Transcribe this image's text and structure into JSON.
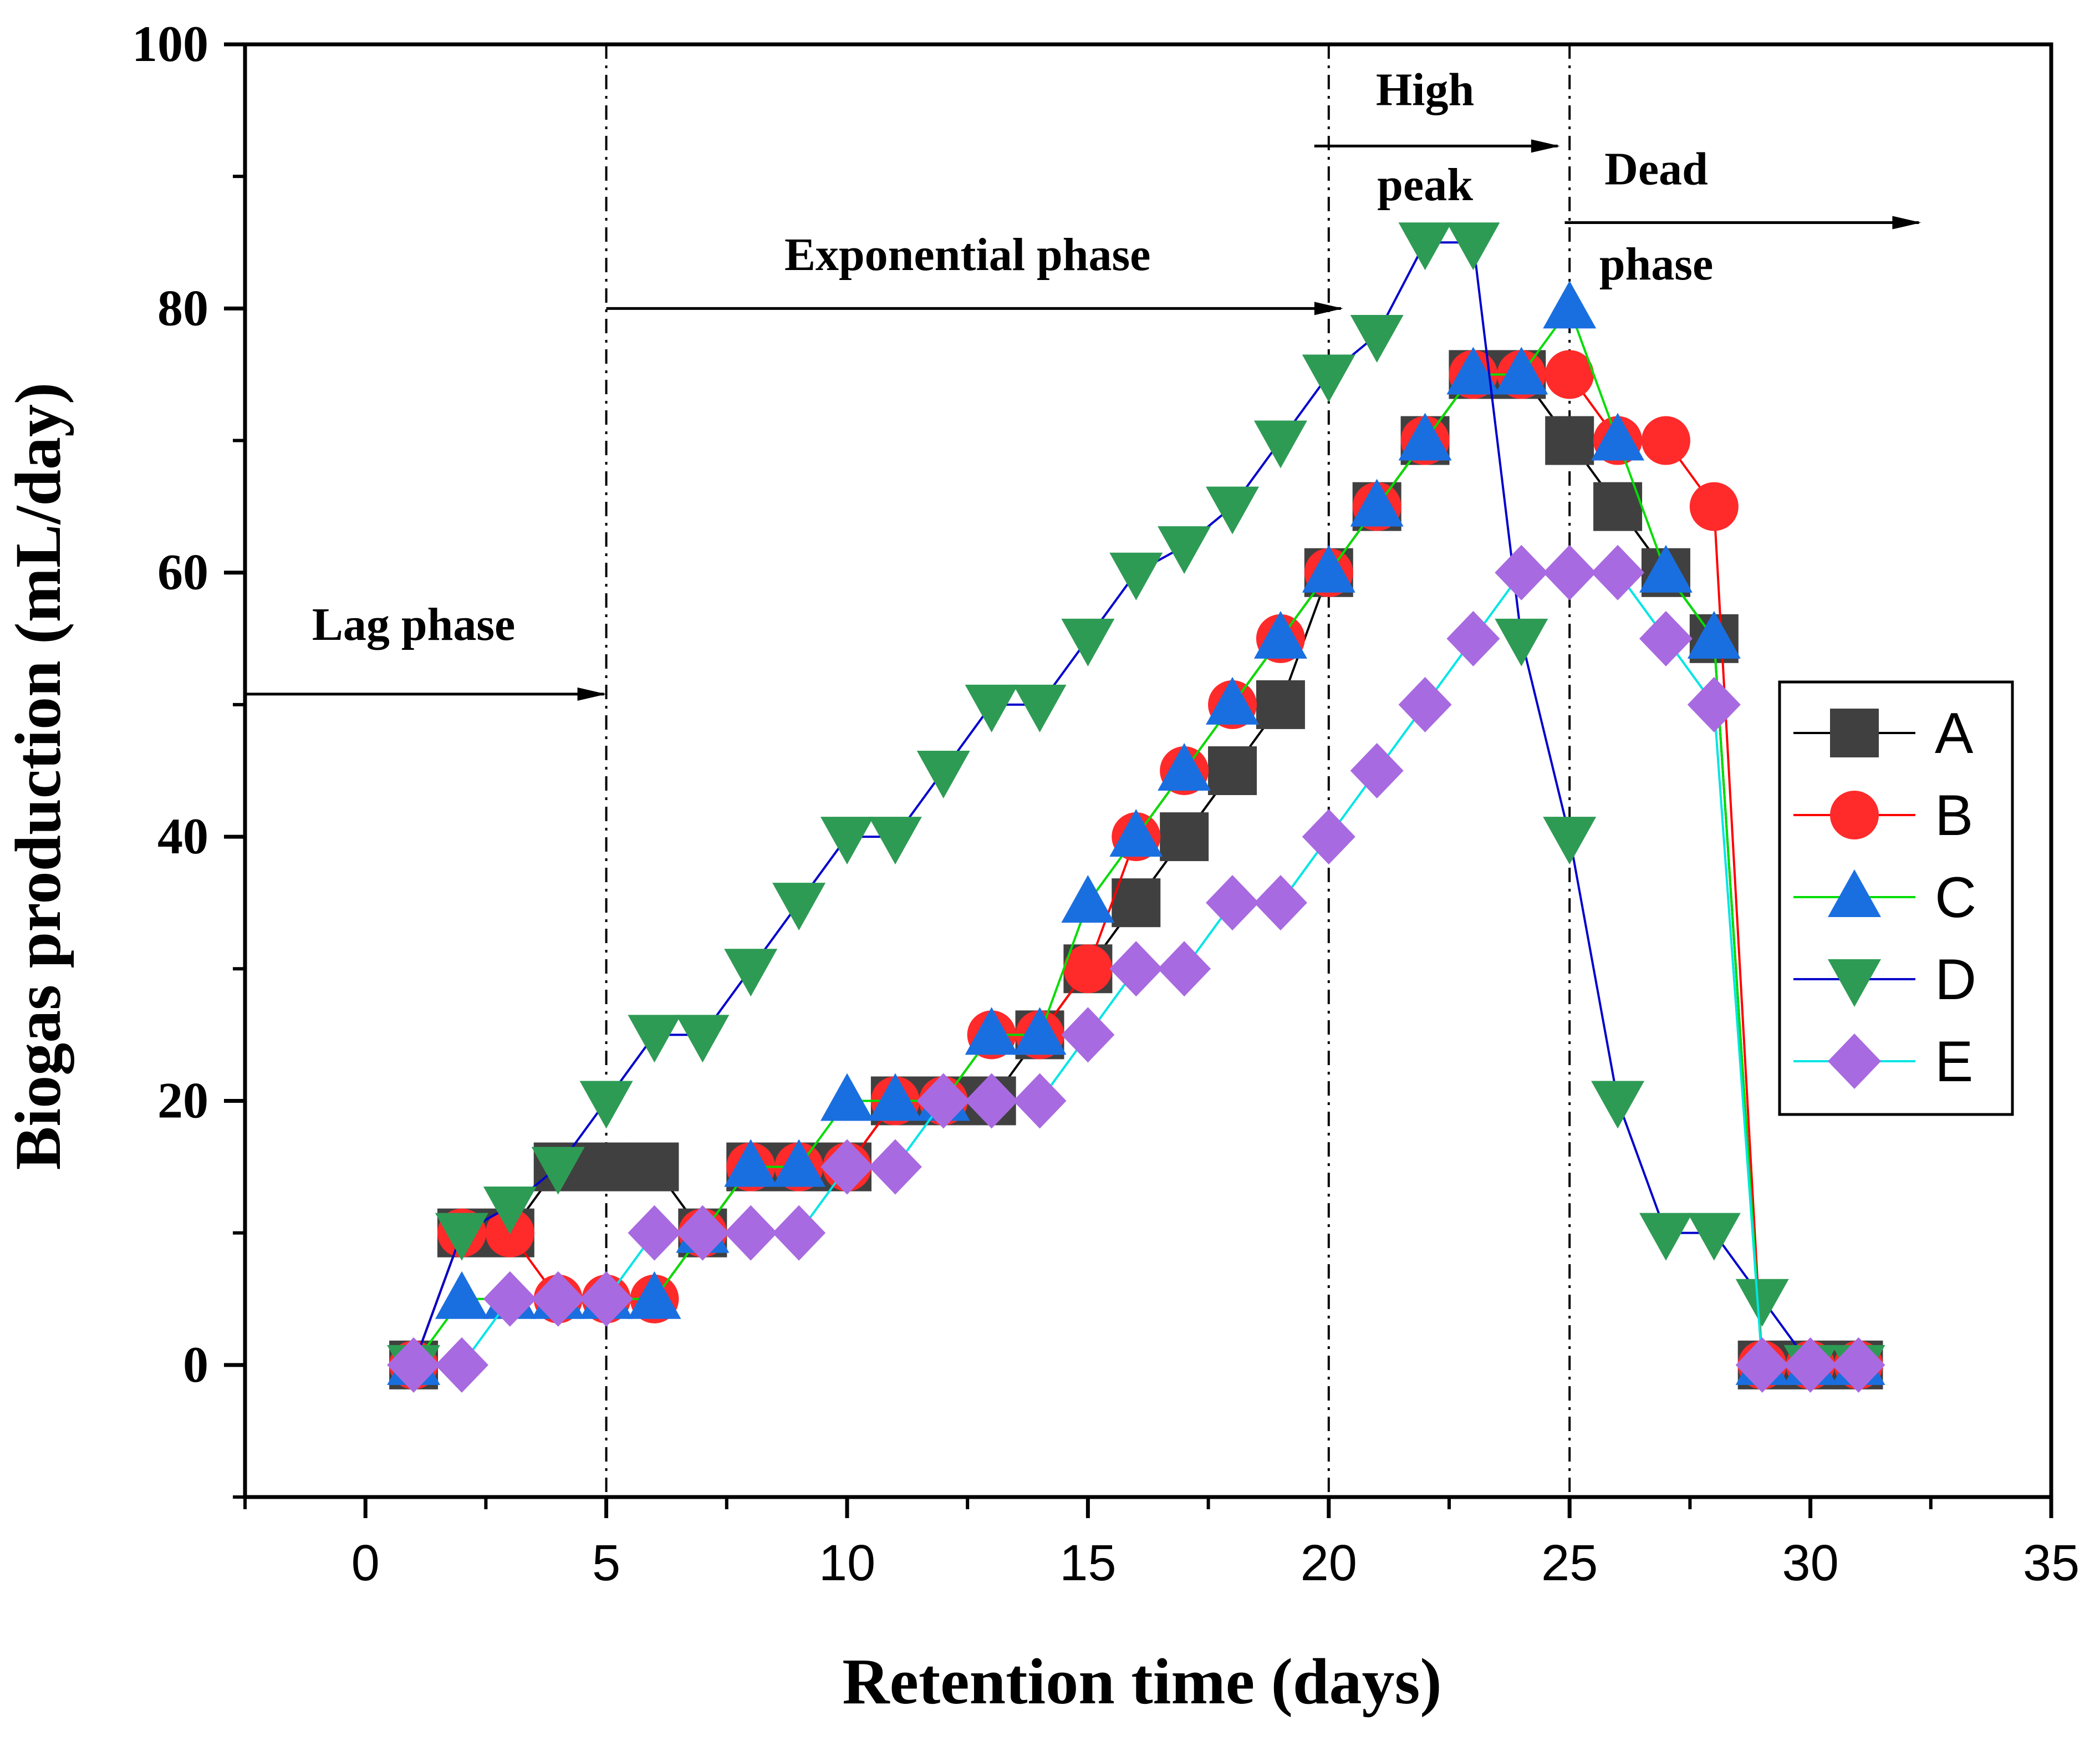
{
  "chart_data": {
    "type": "line",
    "title": "",
    "xlabel": "Retention time (days)",
    "ylabel": "Biogas production (mL/day)",
    "xlim": [
      -2.5,
      35
    ],
    "ylim": [
      -10,
      100
    ],
    "xticks": [
      0,
      5,
      10,
      15,
      20,
      25,
      30,
      35
    ],
    "yticks": [
      0,
      20,
      40,
      60,
      80,
      100
    ],
    "grid": false,
    "legend_position": "right",
    "series": [
      {
        "name": "A",
        "marker": "square",
        "marker_color": "#404040",
        "line_color": "#000000",
        "x": [
          1,
          2,
          3,
          4,
          5,
          6,
          7,
          8,
          9,
          10,
          11,
          12,
          13,
          14,
          15,
          16,
          17,
          18,
          19,
          20,
          21,
          22,
          23,
          24,
          25,
          26,
          27,
          28,
          29,
          30,
          31
        ],
        "y": [
          0,
          10,
          10,
          15,
          15,
          15,
          10,
          15,
          15,
          15,
          20,
          20,
          20,
          25,
          30,
          35,
          40,
          45,
          50,
          60,
          65,
          70,
          75,
          75,
          70,
          65,
          60,
          55,
          0,
          0,
          0
        ]
      },
      {
        "name": "B",
        "marker": "circle",
        "marker_color": "#ff2a2a",
        "line_color": "#ff0000",
        "x": [
          1,
          2,
          3,
          4,
          5,
          6,
          7,
          8,
          9,
          10,
          11,
          12,
          13,
          14,
          15,
          16,
          17,
          18,
          19,
          20,
          21,
          22,
          23,
          24,
          25,
          26,
          27,
          28,
          29,
          30,
          31
        ],
        "y": [
          0,
          10,
          10,
          5,
          5,
          5,
          10,
          15,
          15,
          15,
          20,
          20,
          25,
          25,
          30,
          40,
          45,
          50,
          55,
          60,
          65,
          70,
          75,
          75,
          75,
          70,
          70,
          65,
          0,
          0,
          0
        ]
      },
      {
        "name": "C",
        "marker": "triangle-up",
        "marker_color": "#1a6fe0",
        "line_color": "#00dd00",
        "x": [
          1,
          2,
          3,
          4,
          5,
          6,
          7,
          8,
          9,
          10,
          11,
          12,
          13,
          14,
          15,
          16,
          17,
          18,
          19,
          20,
          21,
          22,
          23,
          24,
          25,
          26,
          27,
          28,
          29,
          30,
          31
        ],
        "y": [
          0,
          5,
          5,
          5,
          5,
          5,
          10,
          15,
          15,
          20,
          20,
          20,
          25,
          25,
          35,
          40,
          45,
          50,
          55,
          60,
          65,
          70,
          75,
          75,
          80,
          70,
          60,
          55,
          0,
          0,
          0
        ]
      },
      {
        "name": "D",
        "marker": "triangle-down",
        "marker_color": "#2e9b55",
        "line_color": "#0000cc",
        "x": [
          1,
          2,
          3,
          4,
          5,
          6,
          7,
          8,
          9,
          10,
          11,
          12,
          13,
          14,
          15,
          16,
          17,
          18,
          19,
          20,
          21,
          22,
          23,
          24,
          25,
          26,
          27,
          28,
          29,
          30,
          31
        ],
        "y": [
          0,
          10,
          12,
          15,
          20,
          25,
          25,
          30,
          35,
          40,
          40,
          45,
          50,
          50,
          55,
          60,
          62,
          65,
          70,
          75,
          78,
          85,
          85,
          55,
          40,
          20,
          10,
          10,
          5,
          0,
          0
        ]
      },
      {
        "name": "E",
        "marker": "diamond",
        "marker_color": "#a86ae0",
        "line_color": "#00e5e5",
        "x": [
          1,
          2,
          3,
          4,
          5,
          6,
          7,
          8,
          9,
          10,
          11,
          12,
          13,
          14,
          15,
          16,
          17,
          18,
          19,
          20,
          21,
          22,
          23,
          24,
          25,
          26,
          27,
          28,
          29,
          30,
          31
        ],
        "y": [
          0,
          0,
          5,
          5,
          5,
          10,
          10,
          10,
          10,
          15,
          15,
          20,
          20,
          20,
          25,
          30,
          30,
          35,
          35,
          40,
          45,
          50,
          55,
          60,
          60,
          60,
          55,
          50,
          0,
          0,
          0
        ]
      }
    ],
    "phase_lines_x": [
      5,
      20,
      25
    ],
    "annotations": [
      {
        "id": "lag",
        "lines": [
          "Lag phase"
        ],
        "x": 1,
        "y": 56,
        "arrow": {
          "x1": -2.5,
          "x2": 5,
          "y": 50.8
        }
      },
      {
        "id": "exponential",
        "lines": [
          "Exponential phase"
        ],
        "x": 12.5,
        "y": 84,
        "arrow": {
          "x1": 5,
          "x2": 20.3,
          "y": 80
        }
      },
      {
        "id": "high-peak",
        "lines": [
          "High",
          "peak"
        ],
        "x": 22,
        "y": 96.5,
        "y2": 89.3,
        "arrow": {
          "x1": 19.7,
          "x2": 24.8,
          "y": 92.3
        }
      },
      {
        "id": "dead",
        "lines": [
          "Dead",
          "phase"
        ],
        "x": 26.8,
        "y": 90.5,
        "y2": 83.3,
        "arrow": {
          "x1": 24.9,
          "x2": 32.3,
          "y": 86.5
        }
      }
    ]
  }
}
